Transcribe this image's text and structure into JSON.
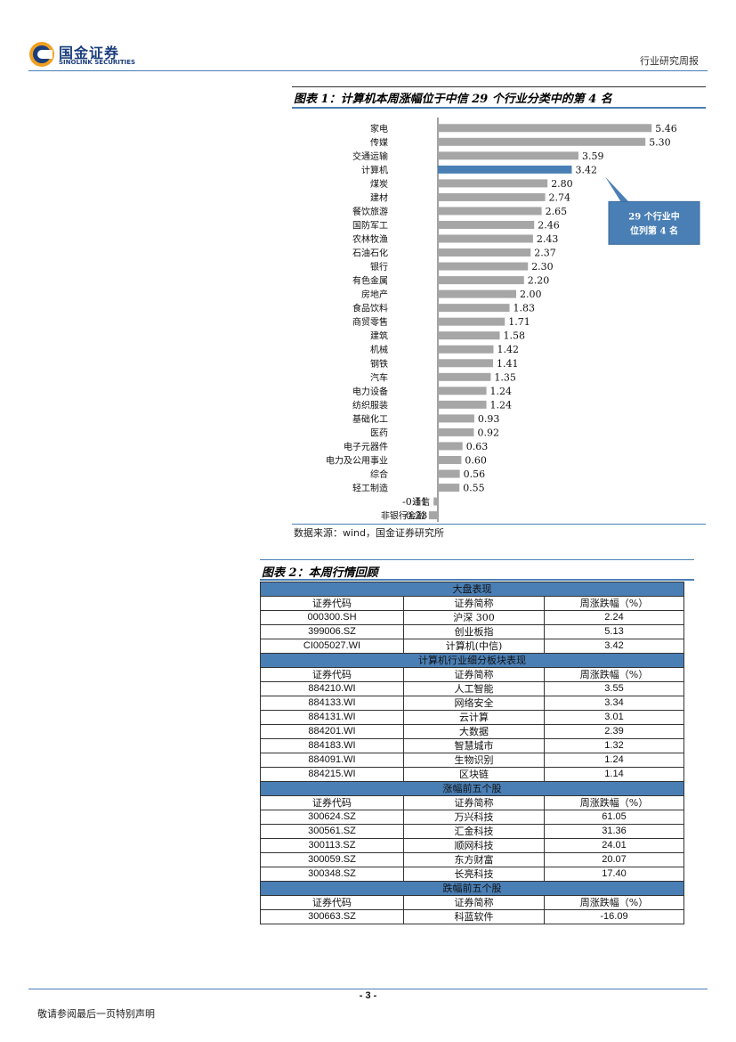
{
  "header": {
    "logo_cn": "国金证券",
    "logo_en": "SINOLINK SECURITIES",
    "report_type": "行业研究周报"
  },
  "figure1": {
    "title": "图表 1：计算机本周涨幅位于中信 29 个行业分类中的第 4 名",
    "source": "数据来源：wind，国金证券研究所",
    "callout": [
      "29 个行业中",
      "位列第 4 名"
    ],
    "bar_color": "#a6a6a6",
    "highlight_color": "#4a7fb5"
  },
  "chart_data": {
    "type": "bar",
    "orientation": "horizontal",
    "categories": [
      "家电",
      "传媒",
      "交通运输",
      "计算机",
      "煤炭",
      "建材",
      "餐饮旅游",
      "国防军工",
      "农林牧渔",
      "石油石化",
      "银行",
      "有色金属",
      "房地产",
      "食品饮料",
      "商贸零售",
      "建筑",
      "机械",
      "钢铁",
      "汽车",
      "电力设备",
      "纺织服装",
      "基础化工",
      "医药",
      "电子元器件",
      "电力及公用事业",
      "综合",
      "轻工制造",
      "通信",
      "非银行金融"
    ],
    "values": [
      5.46,
      5.3,
      3.59,
      3.42,
      2.8,
      2.74,
      2.65,
      2.46,
      2.43,
      2.37,
      2.3,
      2.2,
      2.0,
      1.83,
      1.71,
      1.58,
      1.42,
      1.41,
      1.35,
      1.24,
      1.24,
      0.93,
      0.92,
      0.63,
      0.6,
      0.56,
      0.55,
      -0.11,
      -0.23
    ],
    "labels": [
      "5.46",
      "5.30",
      "3.59",
      "3.42",
      "2.80",
      "2.74",
      "2.65",
      "2.46",
      "2.43",
      "2.37",
      "2.30",
      "2.20",
      "2.00",
      "1.83",
      "1.71",
      "1.58",
      "1.42",
      "1.41",
      "1.35",
      "1.24",
      "1.24",
      "0.93",
      "0.92",
      "0.63",
      "0.60",
      "0.56",
      "0.55",
      "-0.11",
      "-0.23"
    ],
    "highlight_category": "计算机"
  },
  "figure2": {
    "title": "图表 2：本周行情回顾",
    "header_cols": [
      "证券代码",
      "证券简称",
      "周涨跌幅（%）"
    ],
    "sections": [
      {
        "title": "大盘表现",
        "rows": [
          [
            "000300.SH",
            "沪深 300",
            "2.24"
          ],
          [
            "399006.SZ",
            "创业板指",
            "5.13"
          ],
          [
            "CI005027.WI",
            "计算机(中信)",
            "3.42"
          ]
        ]
      },
      {
        "title": "计算机行业细分板块表现",
        "rows": [
          [
            "884210.WI",
            "人工智能",
            "3.55"
          ],
          [
            "884133.WI",
            "网络安全",
            "3.34"
          ],
          [
            "884131.WI",
            "云计算",
            "3.01"
          ],
          [
            "884201.WI",
            "大数据",
            "2.39"
          ],
          [
            "884183.WI",
            "智慧城市",
            "1.32"
          ],
          [
            "884091.WI",
            "生物识别",
            "1.24"
          ],
          [
            "884215.WI",
            "区块链",
            "1.14"
          ]
        ]
      },
      {
        "title": "涨幅前五个股",
        "rows": [
          [
            "300624.SZ",
            "万兴科技",
            "61.05"
          ],
          [
            "300561.SZ",
            "汇金科技",
            "31.36"
          ],
          [
            "300113.SZ",
            "顺网科技",
            "24.01"
          ],
          [
            "300059.SZ",
            "东方财富",
            "20.07"
          ],
          [
            "300348.SZ",
            "长亮科技",
            "17.40"
          ]
        ]
      },
      {
        "title": "跌幅前五个股",
        "rows": [
          [
            "300663.SZ",
            "科蓝软件",
            "-16.09"
          ]
        ]
      }
    ]
  },
  "footer": {
    "page": "- 3 -",
    "note": "敬请参阅最后一页特别声明"
  }
}
